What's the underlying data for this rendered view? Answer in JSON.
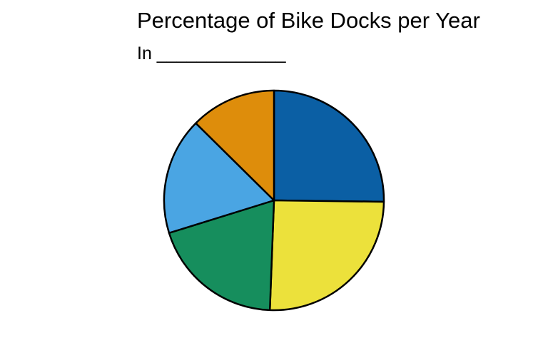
{
  "chart_data": {
    "type": "pie",
    "title": "Percentage of Bike Docks per Year",
    "subtitle": "In _____________",
    "slices": [
      {
        "value": 25.2,
        "color": "#0b5fa4"
      },
      {
        "value": 25.4,
        "color": "#ece13b"
      },
      {
        "value": 19.6,
        "color": "#168e5d"
      },
      {
        "value": 17.2,
        "color": "#4aa5e3"
      },
      {
        "value": 12.6,
        "color": "#de8d0b"
      }
    ]
  }
}
